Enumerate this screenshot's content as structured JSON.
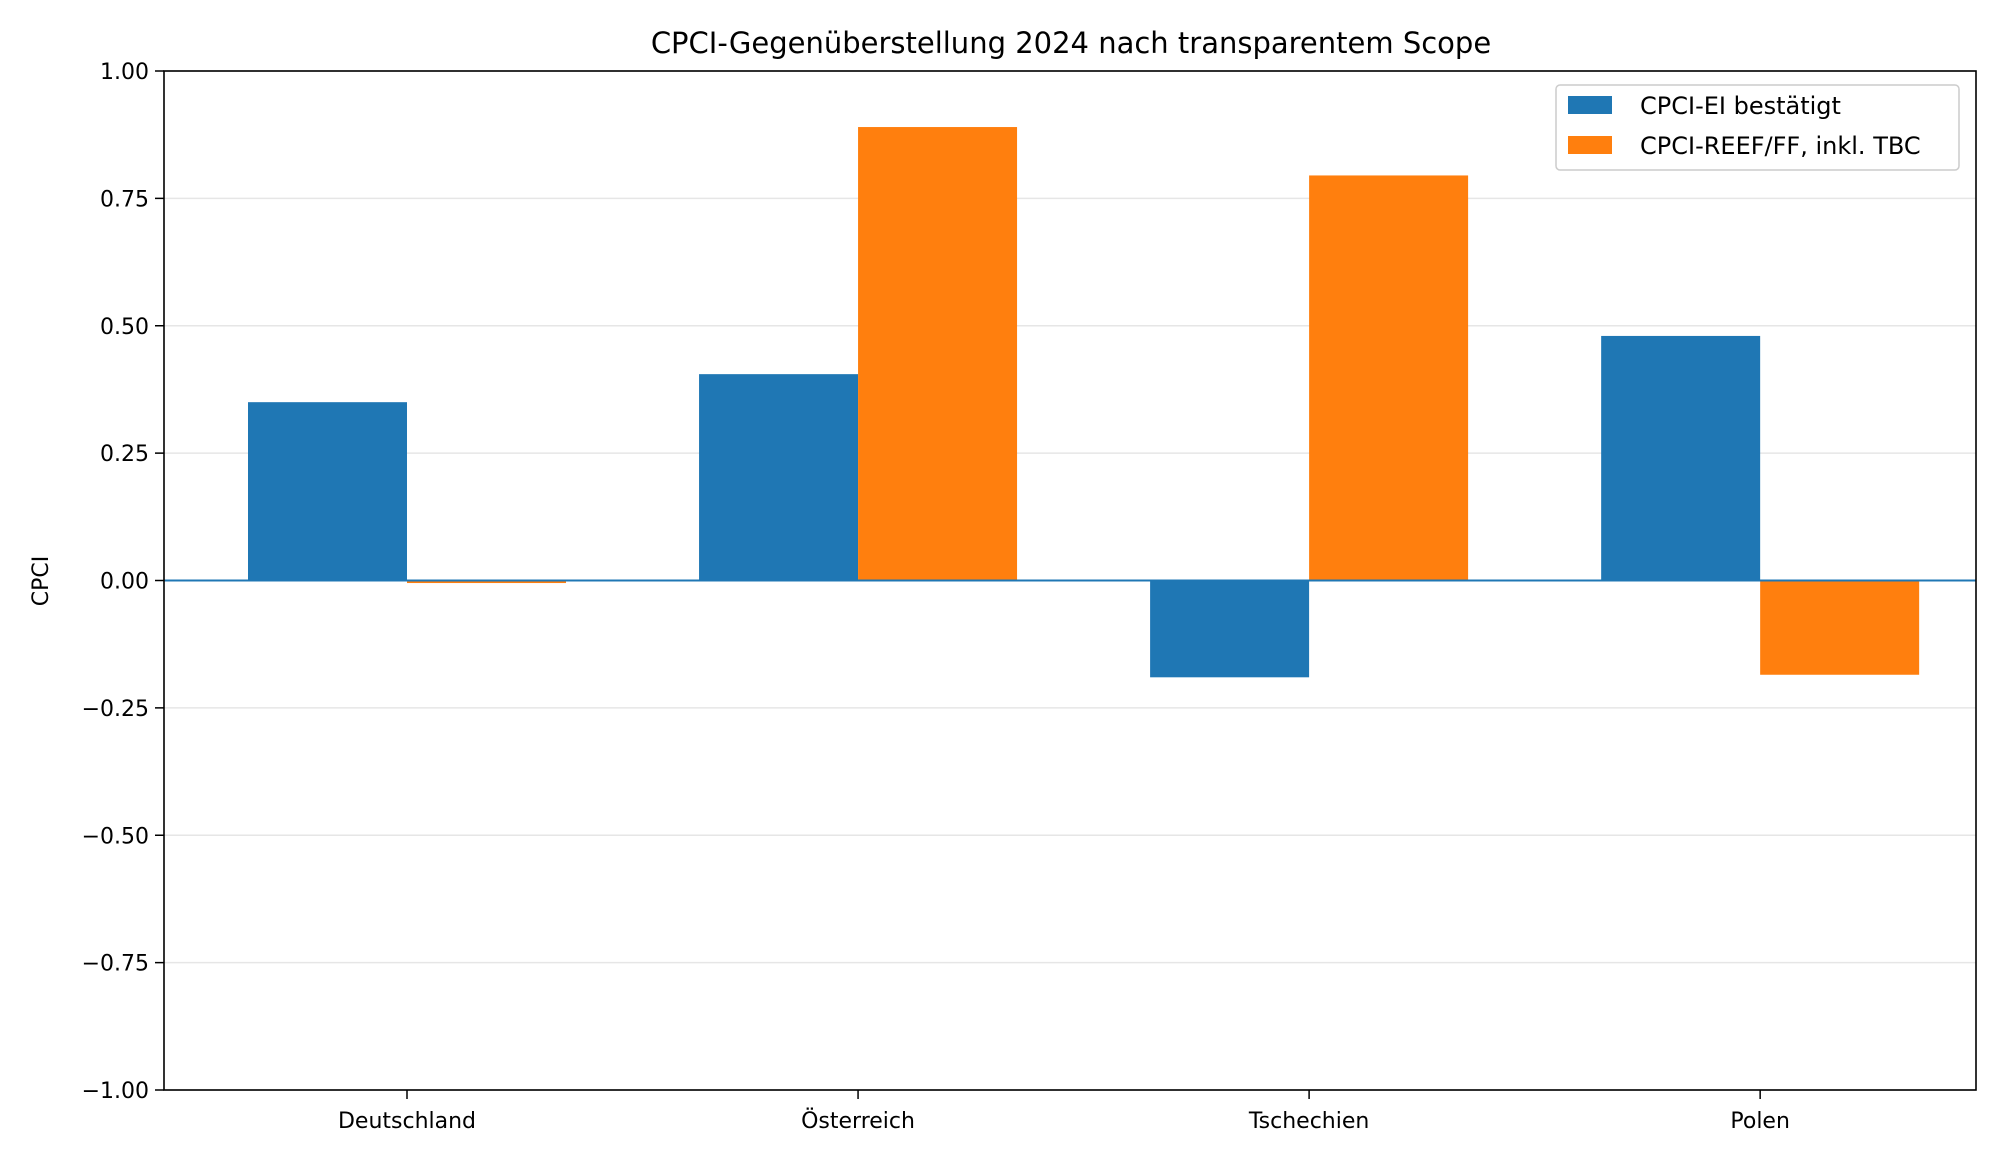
{
  "chart_data": {
    "type": "bar",
    "title": "CPCI-Gegenüberstellung 2024 nach transparentem Scope",
    "xlabel": "",
    "ylabel": "CPCI",
    "categories": [
      "Deutschland",
      "Österreich",
      "Tschechien",
      "Polen"
    ],
    "series": [
      {
        "name": "CPCI-EI bestätigt",
        "color": "#1f77b4",
        "values": [
          0.35,
          0.405,
          -0.19,
          0.48
        ]
      },
      {
        "name": "CPCI-REEF/FF, inkl. TBC",
        "color": "#ff7f0e",
        "values": [
          -0.005,
          0.89,
          0.795,
          -0.185
        ]
      }
    ],
    "ylim": [
      -1.0,
      1.0
    ],
    "yticks": [
      1.0,
      0.75,
      0.5,
      0.25,
      0.0,
      -0.25,
      -0.5,
      -0.75,
      -1.0
    ],
    "ytick_labels": [
      "1.00",
      "0.75",
      "0.50",
      "0.25",
      "0.00",
      "−0.25",
      "−0.50",
      "−0.75",
      "−1.00"
    ],
    "grid": "horizontal",
    "zero_line_color": "#1f77b4",
    "legend_position": "top-right"
  }
}
